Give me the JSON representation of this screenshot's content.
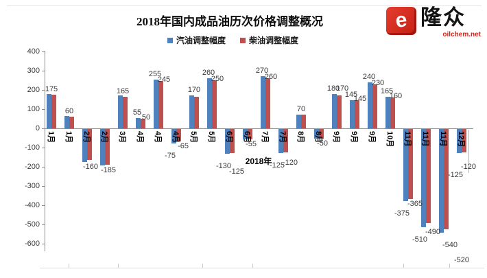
{
  "title": "2018年国内成品油历次价格调整概况",
  "logo": {
    "brand": "隆众",
    "domain": "oilchem.net",
    "glyph": "e"
  },
  "colors": {
    "gasoline": "#4f81bd",
    "diesel": "#c0504d"
  },
  "chart_data": {
    "type": "bar",
    "title": "2018年国内成品油历次价格调整概况",
    "xlabel": "2018年",
    "ylabel": "",
    "ylim": [
      -600,
      400
    ],
    "y_ticks": [
      400,
      300,
      200,
      100,
      0,
      -100,
      -200,
      -300,
      -400,
      -500,
      -600
    ],
    "grid": false,
    "legend_position": "top-center",
    "series": [
      {
        "name": "汽油调整幅度",
        "color": "#4f81bd"
      },
      {
        "name": "柴油调整幅度",
        "color": "#c0504d"
      }
    ],
    "categories": [
      "1月",
      "1月",
      "2月",
      "2月",
      "3月",
      "4月",
      "4月",
      "4月",
      "5月",
      "5月",
      "6月",
      "6月",
      "7月",
      "7月",
      "8月",
      "8月",
      "9月",
      "9月",
      "9月",
      "10月",
      "11月",
      "11月",
      "11月",
      "12月"
    ],
    "points": [
      {
        "month": "1月",
        "gas": 180,
        "diesel": 175,
        "gas_label": null,
        "diesel_label": "175"
      },
      {
        "month": "1月",
        "gas": 65,
        "diesel": 60,
        "gas_label": null,
        "diesel_label": "60"
      },
      {
        "month": "2月",
        "gas": -170,
        "diesel": -160,
        "gas_label": null,
        "diesel_label": "-160"
      },
      {
        "month": "2月",
        "gas": -190,
        "diesel": -185,
        "gas_label": null,
        "diesel_label": "-185"
      },
      {
        "month": "3月",
        "gas": 170,
        "diesel": 165,
        "gas_label": null,
        "diesel_label": "165"
      },
      {
        "month": "4月",
        "gas": 55,
        "diesel": 50,
        "gas_label": "55",
        "diesel_label": "50"
      },
      {
        "month": "4月",
        "gas": 255,
        "diesel": 245,
        "gas_label": "255",
        "diesel_label": "245"
      },
      {
        "month": "4月",
        "gas": -75,
        "diesel": -65,
        "gas_label": "-75",
        "diesel_label": "-65"
      },
      {
        "month": "5月",
        "gas": 170,
        "diesel": 165,
        "gas_label": "170",
        "diesel_label": null
      },
      {
        "month": "5月",
        "gas": 260,
        "diesel": 250,
        "gas_label": "260",
        "diesel_label": "250"
      },
      {
        "month": "6月",
        "gas": -130,
        "diesel": -125,
        "gas_label": "-130",
        "diesel_label": "-125"
      },
      {
        "month": "6月",
        "gas": -55,
        "diesel": -55,
        "gas_label": null,
        "diesel_label": "-55"
      },
      {
        "month": "7月",
        "gas": 270,
        "diesel": 260,
        "gas_label": "270",
        "diesel_label": "260"
      },
      {
        "month": "7月",
        "gas": -125,
        "diesel": -120,
        "gas_label": "-125",
        "diesel_label": "-120"
      },
      {
        "month": "8月",
        "gas": 70,
        "diesel": 70,
        "gas_label": "70",
        "diesel_label": null
      },
      {
        "month": "8月",
        "gas": -50,
        "diesel": -50,
        "gas_label": null,
        "diesel_label": "-50"
      },
      {
        "month": "9月",
        "gas": 180,
        "diesel": 170,
        "gas_label": "180",
        "diesel_label": "170"
      },
      {
        "month": "9月",
        "gas": 145,
        "diesel": 145,
        "gas_label": "145",
        "diesel_label": "145"
      },
      {
        "month": "9月",
        "gas": 240,
        "diesel": 230,
        "gas_label": "240",
        "diesel_label": "230"
      },
      {
        "month": "10月",
        "gas": 165,
        "diesel": 160,
        "gas_label": "165",
        "diesel_label": "160"
      },
      {
        "month": "11月",
        "gas": -375,
        "diesel": -365,
        "gas_label": "-375",
        "diesel_label": "-365"
      },
      {
        "month": "11月",
        "gas": -510,
        "diesel": -490,
        "gas_label": "-510",
        "diesel_label": "-490"
      },
      {
        "month": "11月",
        "gas": -540,
        "diesel": -520,
        "gas_label": "-540",
        "diesel_label": "-520"
      },
      {
        "month": "12月",
        "gas": -125,
        "diesel": -120,
        "gas_label": "-125",
        "diesel_label": "-120"
      }
    ]
  }
}
